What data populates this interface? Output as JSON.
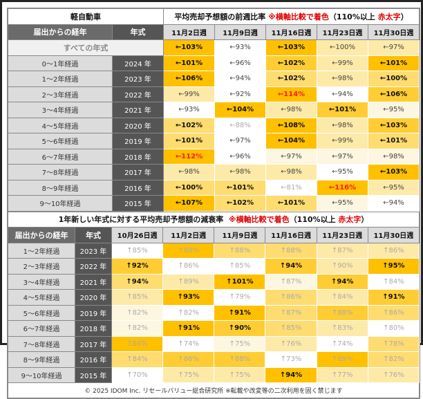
{
  "top": {
    "category": "軽自動車",
    "title": "平均売却予想額の前週比率",
    "note": "※横軸比較で着色",
    "paren_open": "（110%以上",
    "paren_red": "赤太字",
    "paren_close": "）",
    "col_label": "届出からの経年",
    "col_year": "年式",
    "weeks": [
      "11月2日週",
      "11月9日週",
      "11月16日週",
      "11月23日週",
      "11月30日週"
    ],
    "arrow": "←",
    "all_label": "すべての年式",
    "all_cells": [
      {
        "v": "103%",
        "lv": 5,
        "s": "b"
      },
      {
        "v": "93%",
        "lv": 0,
        "s": "n"
      },
      {
        "v": "103%",
        "lv": 5,
        "s": "b"
      },
      {
        "v": "100%",
        "lv": 2,
        "s": "n"
      },
      {
        "v": "97%",
        "lv": 2,
        "s": "n"
      }
    ],
    "rows": [
      {
        "label": "0～1年経過",
        "year": "2024 年",
        "cells": [
          {
            "v": "101%",
            "lv": 5,
            "s": "b"
          },
          {
            "v": "96%",
            "lv": 0,
            "s": "n"
          },
          {
            "v": "102%",
            "lv": 4,
            "s": "b"
          },
          {
            "v": "99%",
            "lv": 2,
            "s": "n"
          },
          {
            "v": "101%",
            "lv": 5,
            "s": "b"
          }
        ]
      },
      {
        "label": "1～2年経過",
        "year": "2023 年",
        "cells": [
          {
            "v": "106%",
            "lv": 5,
            "s": "b"
          },
          {
            "v": "94%",
            "lv": 0,
            "s": "n"
          },
          {
            "v": "102%",
            "lv": 3,
            "s": "b"
          },
          {
            "v": "98%",
            "lv": 2,
            "s": "n"
          },
          {
            "v": "100%",
            "lv": 3,
            "s": "b"
          }
        ]
      },
      {
        "label": "2～3年経過",
        "year": "2022 年",
        "cells": [
          {
            "v": "99%",
            "lv": 2,
            "s": "n"
          },
          {
            "v": "92%",
            "lv": 0,
            "s": "n"
          },
          {
            "v": "114%",
            "lv": 5,
            "s": "r"
          },
          {
            "v": "94%",
            "lv": 0,
            "s": "n"
          },
          {
            "v": "106%",
            "lv": 4,
            "s": "b"
          }
        ]
      },
      {
        "label": "3～4年経過",
        "year": "2021 年",
        "cells": [
          {
            "v": "93%",
            "lv": 0,
            "s": "n"
          },
          {
            "v": "104%",
            "lv": 5,
            "s": "b"
          },
          {
            "v": "98%",
            "lv": 2,
            "s": "n"
          },
          {
            "v": "101%",
            "lv": 4,
            "s": "b"
          },
          {
            "v": "95%",
            "lv": 1,
            "s": "n"
          }
        ]
      },
      {
        "label": "4～5年経過",
        "year": "2020 年",
        "cells": [
          {
            "v": "102%",
            "lv": 3,
            "s": "b"
          },
          {
            "v": "88%",
            "lv": 0,
            "s": "g"
          },
          {
            "v": "108%",
            "lv": 5,
            "s": "b"
          },
          {
            "v": "98%",
            "lv": 2,
            "s": "n"
          },
          {
            "v": "103%",
            "lv": 4,
            "s": "b"
          }
        ]
      },
      {
        "label": "5～6年経過",
        "year": "2019 年",
        "cells": [
          {
            "v": "101%",
            "lv": 3,
            "s": "b"
          },
          {
            "v": "97%",
            "lv": 0,
            "s": "n"
          },
          {
            "v": "104%",
            "lv": 5,
            "s": "b"
          },
          {
            "v": "99%",
            "lv": 2,
            "s": "n"
          },
          {
            "v": "101%",
            "lv": 3,
            "s": "b"
          }
        ]
      },
      {
        "label": "6～7年経過",
        "year": "2018 年",
        "cells": [
          {
            "v": "112%",
            "lv": 5,
            "s": "r"
          },
          {
            "v": "96%",
            "lv": 0,
            "s": "n"
          },
          {
            "v": "97%",
            "lv": 1,
            "s": "n"
          },
          {
            "v": "97%",
            "lv": 1,
            "s": "n"
          },
          {
            "v": "98%",
            "lv": 1,
            "s": "n"
          }
        ]
      },
      {
        "label": "7～8年経過",
        "year": "2017 年",
        "cells": [
          {
            "v": "98%",
            "lv": 2,
            "s": "n"
          },
          {
            "v": "98%",
            "lv": 2,
            "s": "n"
          },
          {
            "v": "98%",
            "lv": 2,
            "s": "n"
          },
          {
            "v": "95%",
            "lv": 0,
            "s": "n"
          },
          {
            "v": "103%",
            "lv": 5,
            "s": "b"
          }
        ]
      },
      {
        "label": "8～9年経過",
        "year": "2016 年",
        "cells": [
          {
            "v": "100%",
            "lv": 3,
            "s": "b"
          },
          {
            "v": "101%",
            "lv": 3,
            "s": "b"
          },
          {
            "v": "81%",
            "lv": 0,
            "s": "g"
          },
          {
            "v": "116%",
            "lv": 5,
            "s": "r"
          },
          {
            "v": "95%",
            "lv": 2,
            "s": "n"
          }
        ]
      },
      {
        "label": "9～10年経過",
        "year": "2015 年",
        "cells": [
          {
            "v": "107%",
            "lv": 5,
            "s": "b"
          },
          {
            "v": "102%",
            "lv": 3,
            "s": "b"
          },
          {
            "v": "101%",
            "lv": 3,
            "s": "b"
          },
          {
            "v": "95%",
            "lv": 1,
            "s": "n"
          },
          {
            "v": "94%",
            "lv": 0,
            "s": "n"
          }
        ]
      }
    ]
  },
  "bottom": {
    "title": "1年新しい年式に対する平均売却予想額の減衰率",
    "note": "※横軸比較で着色",
    "paren_open": "（110%以上",
    "paren_red": "赤太字",
    "paren_close": "）",
    "col_label": "届出からの経年",
    "col_year": "年式",
    "weeks": [
      "10月26日週",
      "11月2日週",
      "11月9日週",
      "11月16日週",
      "11月23日週",
      "11月30日週"
    ],
    "arrow": "↑",
    "rows": [
      {
        "label": "1～2年経過",
        "year": "2023 年",
        "cells": [
          {
            "v": "85%",
            "lv": 0,
            "s": "g"
          },
          {
            "v": "89%",
            "lv": 5,
            "s": "g"
          },
          {
            "v": "88%",
            "lv": 3,
            "s": "g"
          },
          {
            "v": "88%",
            "lv": 3,
            "s": "g"
          },
          {
            "v": "87%",
            "lv": 2,
            "s": "g"
          },
          {
            "v": "86%",
            "lv": 2,
            "s": "g"
          }
        ]
      },
      {
        "label": "2～3年経過",
        "year": "2022 年",
        "cells": [
          {
            "v": "92%",
            "lv": 4,
            "s": "b"
          },
          {
            "v": "86%",
            "lv": 0,
            "s": "g"
          },
          {
            "v": "85%",
            "lv": 0,
            "s": "g"
          },
          {
            "v": "94%",
            "lv": 4,
            "s": "b"
          },
          {
            "v": "90%",
            "lv": 2,
            "s": "g"
          },
          {
            "v": "95%",
            "lv": 5,
            "s": "b"
          }
        ]
      },
      {
        "label": "3～4年経過",
        "year": "2021 年",
        "cells": [
          {
            "v": "94%",
            "lv": 3,
            "s": "b"
          },
          {
            "v": "89%",
            "lv": 2,
            "s": "g"
          },
          {
            "v": "101%",
            "lv": 5,
            "s": "b"
          },
          {
            "v": "87%",
            "lv": 1,
            "s": "g"
          },
          {
            "v": "94%",
            "lv": 4,
            "s": "b"
          },
          {
            "v": "84%",
            "lv": 0,
            "s": "g"
          }
        ]
      },
      {
        "label": "4～5年経過",
        "year": "2020 年",
        "cells": [
          {
            "v": "85%",
            "lv": 2,
            "s": "g"
          },
          {
            "v": "93%",
            "lv": 5,
            "s": "b"
          },
          {
            "v": "79%",
            "lv": 0,
            "s": "g"
          },
          {
            "v": "86%",
            "lv": 3,
            "s": "g"
          },
          {
            "v": "84%",
            "lv": 2,
            "s": "g"
          },
          {
            "v": "91%",
            "lv": 4,
            "s": "b"
          }
        ]
      },
      {
        "label": "5～6年経過",
        "year": "2019 年",
        "cells": [
          {
            "v": "82%",
            "lv": 1,
            "s": "g"
          },
          {
            "v": "82%",
            "lv": 0,
            "s": "g"
          },
          {
            "v": "91%",
            "lv": 5,
            "s": "b"
          },
          {
            "v": "87%",
            "lv": 3,
            "s": "g"
          },
          {
            "v": "88%",
            "lv": 4,
            "s": "g"
          },
          {
            "v": "86%",
            "lv": 3,
            "s": "g"
          }
        ]
      },
      {
        "label": "6～7年経過",
        "year": "2018 年",
        "cells": [
          {
            "v": "82%",
            "lv": 1,
            "s": "g"
          },
          {
            "v": "91%",
            "lv": 5,
            "s": "b"
          },
          {
            "v": "90%",
            "lv": 4,
            "s": "b"
          },
          {
            "v": "85%",
            "lv": 3,
            "s": "g"
          },
          {
            "v": "83%",
            "lv": 2,
            "s": "g"
          },
          {
            "v": "80%",
            "lv": 0,
            "s": "g"
          }
        ]
      },
      {
        "label": "7～8年経過",
        "year": "2017 年",
        "cells": [
          {
            "v": "84%",
            "lv": 5,
            "s": "g"
          },
          {
            "v": "74%",
            "lv": 0,
            "s": "g"
          },
          {
            "v": "75%",
            "lv": 1,
            "s": "g"
          },
          {
            "v": "76%",
            "lv": 2,
            "s": "g"
          },
          {
            "v": "74%",
            "lv": 0,
            "s": "g"
          },
          {
            "v": "78%",
            "lv": 3,
            "s": "g"
          }
        ]
      },
      {
        "label": "8～9年経過",
        "year": "2016 年",
        "cells": [
          {
            "v": "84%",
            "lv": 3,
            "s": "g"
          },
          {
            "v": "86%",
            "lv": 4,
            "s": "g"
          },
          {
            "v": "88%",
            "lv": 4,
            "s": "g"
          },
          {
            "v": "73%",
            "lv": 0,
            "s": "g"
          },
          {
            "v": "89%",
            "lv": 5,
            "s": "g"
          },
          {
            "v": "82%",
            "lv": 3,
            "s": "g"
          }
        ]
      },
      {
        "label": "9～10年経過",
        "year": "2015 年",
        "cells": [
          {
            "v": "70%",
            "lv": 0,
            "s": "g"
          },
          {
            "v": "75%",
            "lv": 2,
            "s": "g"
          },
          {
            "v": "75%",
            "lv": 2,
            "s": "g"
          },
          {
            "v": "94%",
            "lv": 5,
            "s": "b"
          },
          {
            "v": "77%",
            "lv": 2,
            "s": "g"
          },
          {
            "v": "76%",
            "lv": 2,
            "s": "g"
          }
        ]
      }
    ]
  },
  "footer": "© 2025 IDOM Inc. リセールバリュー総合研究所 ※転載や改変等の二次利用を固く禁じます",
  "colors": {
    "levels": [
      "#ffffff",
      "#fdf6e0",
      "#feeaa8",
      "#ffdc70",
      "#ffcd33",
      "#ffc000"
    ],
    "red": "#e00000"
  }
}
